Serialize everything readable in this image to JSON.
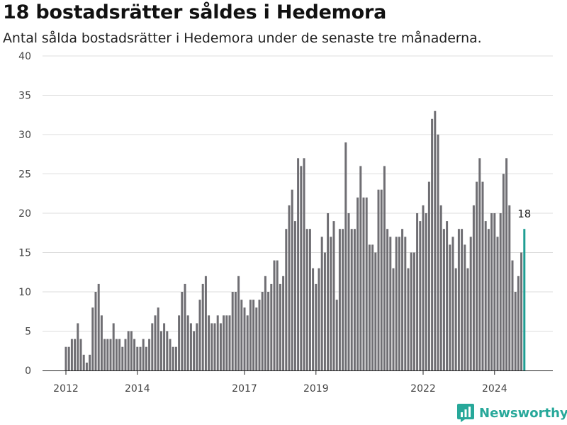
{
  "title": "18 bostadsrätter såldes i Hedemora",
  "subtitle": "Antal sålda bostadsrätter i Hedemora under de senaste tre månaderna.",
  "brand": {
    "name": "Newsworthy",
    "icon": "newsworthy-logo-icon"
  },
  "colors": {
    "bar": "#6f6e73",
    "highlight": "#1f9e93",
    "grid": "#dddddd",
    "axis": "#222222"
  },
  "chart_data": {
    "type": "bar",
    "title": "18 bostadsrätter såldes i Hedemora",
    "subtitle": "Antal sålda bostadsrätter i Hedemora under de senaste tre månaderna.",
    "xlabel": "",
    "ylabel": "",
    "ylim": [
      0,
      40
    ],
    "yticks": [
      0,
      5,
      10,
      15,
      20,
      25,
      30,
      35,
      40
    ],
    "xticks": [
      "2012",
      "2014",
      "2017",
      "2019",
      "2022",
      "2024"
    ],
    "grid": true,
    "period": "rolling 3-month count, monthly, Jan 2012 – Sep 2024",
    "start": "2012-01",
    "values": [
      3,
      3,
      4,
      4,
      6,
      4,
      2,
      1,
      2,
      8,
      10,
      11,
      7,
      4,
      4,
      4,
      6,
      4,
      4,
      3,
      4,
      5,
      5,
      4,
      3,
      3,
      4,
      3,
      4,
      6,
      7,
      8,
      5,
      6,
      5,
      4,
      3,
      3,
      7,
      10,
      11,
      7,
      6,
      5,
      6,
      9,
      11,
      12,
      7,
      6,
      6,
      7,
      6,
      7,
      7,
      7,
      10,
      10,
      12,
      9,
      8,
      7,
      9,
      9,
      8,
      9,
      10,
      12,
      10,
      11,
      14,
      14,
      11,
      12,
      18,
      21,
      23,
      19,
      27,
      26,
      27,
      18,
      18,
      13,
      11,
      13,
      17,
      15,
      20,
      17,
      19,
      9,
      18,
      18,
      29,
      20,
      18,
      18,
      22,
      26,
      22,
      22,
      16,
      16,
      15,
      23,
      23,
      26,
      18,
      17,
      13,
      17,
      17,
      18,
      17,
      13,
      15,
      15,
      20,
      19,
      21,
      20,
      24,
      32,
      33,
      30,
      21,
      18,
      19,
      16,
      17,
      13,
      18,
      18,
      16,
      13,
      17,
      21,
      24,
      27,
      24,
      19,
      18,
      20,
      20,
      17,
      20,
      25,
      27,
      21,
      14,
      10,
      12,
      15,
      18
    ],
    "highlight": {
      "label": "18",
      "value": 18
    }
  }
}
